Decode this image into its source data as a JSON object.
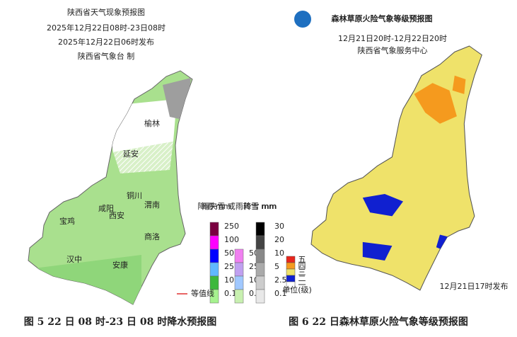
{
  "left_map": {
    "title": "陕西省天气现象预报图",
    "period": "2025年12月22日08时-23日08时",
    "issued": "2025年12月22日06时发布",
    "producer": "陕西省气象台 制",
    "cities": [
      "榆林",
      "延安",
      "铜川",
      "宝鸡",
      "咸阳",
      "西安",
      "渭南",
      "汉中",
      "商洛",
      "安康"
    ],
    "rain_legend": {
      "title": "降雨 mm",
      "labels": [
        "250",
        "100",
        "50",
        "25",
        "10",
        "0.1"
      ]
    },
    "sleet_legend": {
      "title": "雨夹雪 或雨转雪 mm",
      "labels": [
        "50",
        "25",
        "10",
        "0.1"
      ]
    },
    "snow_legend": {
      "title": "降雪 mm",
      "labels": [
        "30",
        "20",
        "10",
        "5",
        "2.5",
        "0.1"
      ]
    },
    "contour_label": "等值线"
  },
  "right_map": {
    "title": "森林草原火险气象等级预报图",
    "period": "12月21日20时-12月22日20时",
    "producer": "陕西省气象服务中心",
    "levels": [
      "五",
      "四",
      "三",
      "二",
      "一"
    ],
    "unit": "单位(级)",
    "issued": "12月21日17时发布"
  },
  "captions": [
    "图 5 22 日 08 时-23 日 08 时降水预报图",
    "图 6 22 日森林草原火险气象等级预报图"
  ]
}
